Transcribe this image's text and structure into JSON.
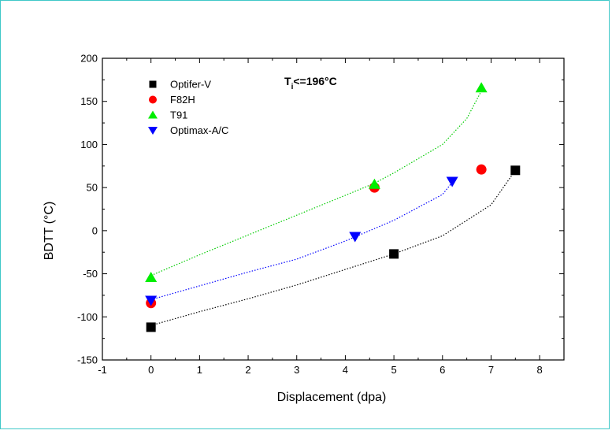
{
  "chart_data": {
    "type": "scatter",
    "xlabel": "Displacement (dpa)",
    "ylabel": "BDTT (°C)",
    "xlim": [
      -1,
      8.5
    ],
    "ylim": [
      -150,
      200
    ],
    "x_ticks": [
      "-1",
      "0",
      "1",
      "2",
      "3",
      "4",
      "5",
      "6",
      "7",
      "8"
    ],
    "y_ticks": [
      "-150",
      "-100",
      "-50",
      "0",
      "50",
      "100",
      "150",
      "200"
    ],
    "grid": false,
    "legend_position": "top-left",
    "annotation": {
      "main": "T",
      "subscript": "i",
      "rest": "<=196°C"
    },
    "series": [
      {
        "name": "Optifer-V",
        "marker": "square",
        "color": "#000000",
        "x": [
          0,
          5.0,
          7.5
        ],
        "y": [
          -112,
          -27,
          70
        ],
        "fit": {
          "color": "#000000",
          "x": [
            0,
            1,
            2,
            3,
            4,
            5,
            6,
            7,
            7.5
          ],
          "y": [
            -110,
            -94,
            -79,
            -63,
            -45,
            -27,
            -6,
            30,
            70
          ]
        }
      },
      {
        "name": "F82H",
        "marker": "circle",
        "color": "#ff0000",
        "x": [
          0,
          4.6,
          6.8
        ],
        "y": [
          -84,
          50,
          71
        ]
      },
      {
        "name": "T91",
        "marker": "triangle-up",
        "color": "#00ee00",
        "x": [
          0,
          4.6,
          6.8
        ],
        "y": [
          -54,
          54,
          166
        ],
        "fit": {
          "color": "#00cc00",
          "x": [
            0,
            1,
            2,
            3,
            4,
            4.6,
            5,
            6,
            6.5,
            6.8
          ],
          "y": [
            -52,
            -28,
            -5,
            18,
            41,
            55,
            67,
            100,
            130,
            162
          ]
        }
      },
      {
        "name": "Optimax-A/C",
        "marker": "triangle-down",
        "color": "#0000ff",
        "x": [
          0,
          4.2,
          6.2
        ],
        "y": [
          -81,
          -7,
          57
        ],
        "fit": {
          "color": "#0000ff",
          "x": [
            0,
            1,
            2,
            3,
            4,
            5,
            6,
            6.2
          ],
          "y": [
            -80,
            -64,
            -48,
            -33,
            -12,
            12,
            42,
            56
          ]
        }
      }
    ]
  }
}
